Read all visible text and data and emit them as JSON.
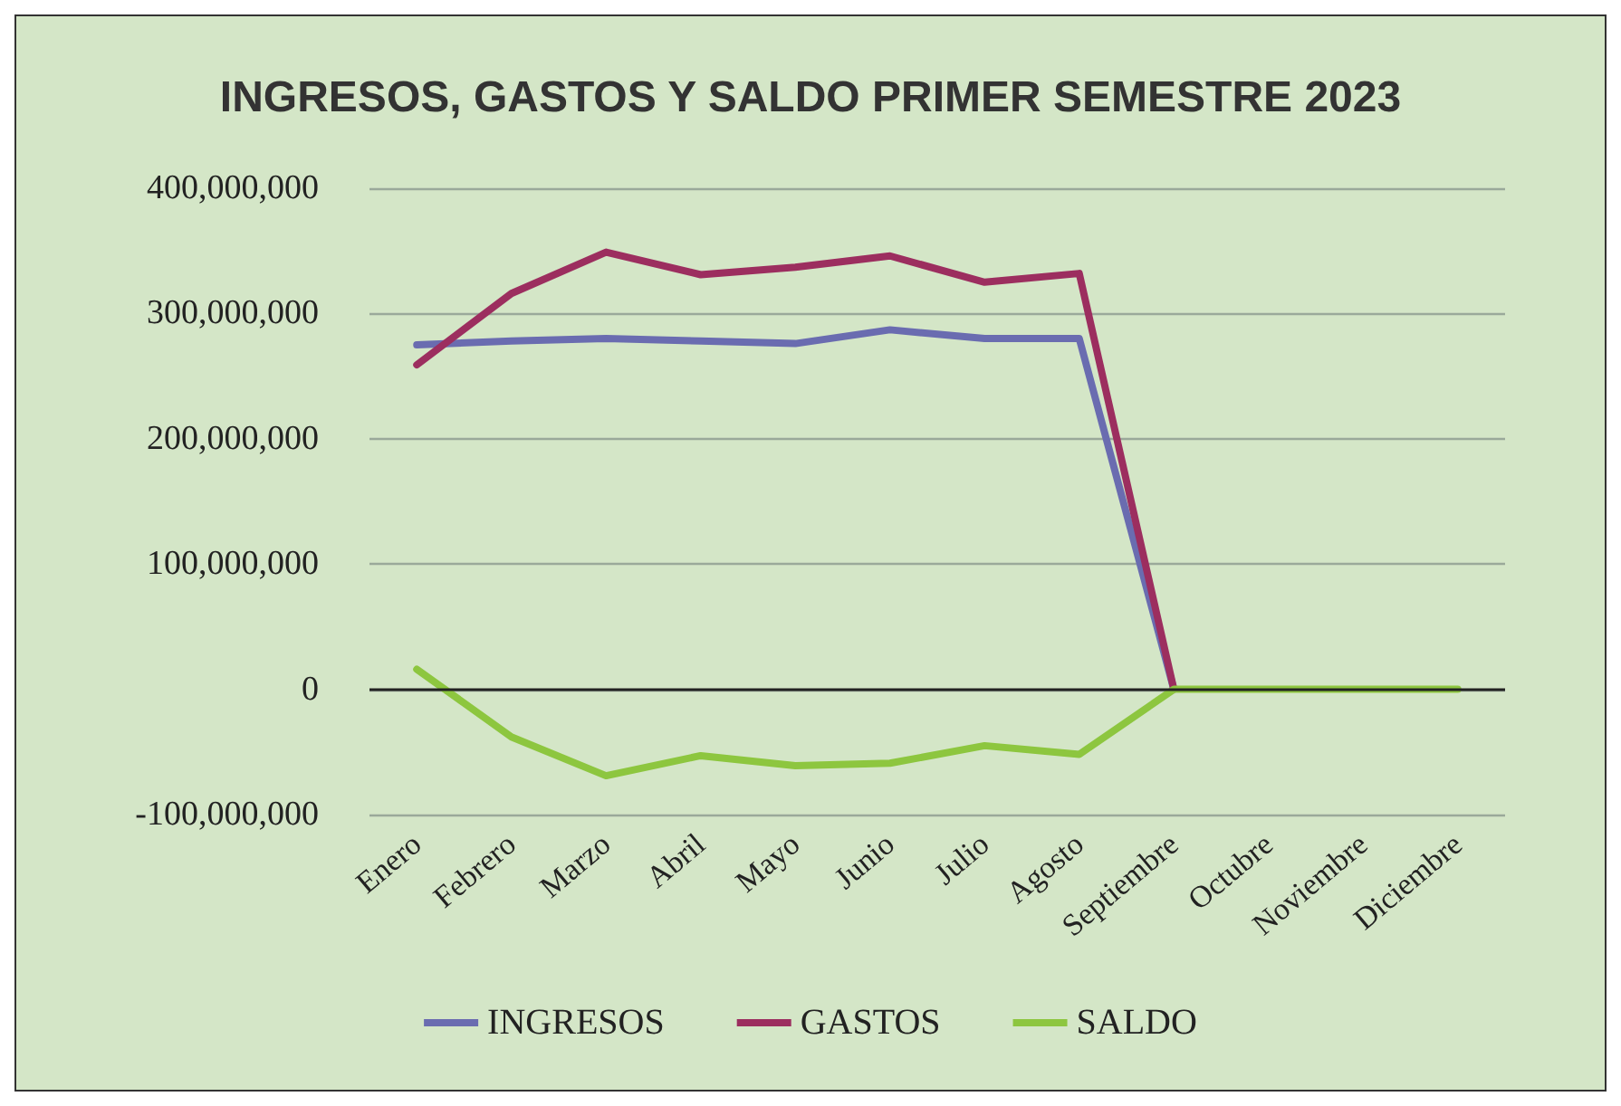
{
  "chart_data": {
    "type": "line",
    "title": "INGRESOS, GASTOS Y SALDO PRIMER SEMESTRE 2023",
    "categories": [
      "Enero",
      "Febrero",
      "Marzo",
      "Abril",
      "Mayo",
      "Junio",
      "Julio",
      "Agosto",
      "Septiembre",
      "Octubre",
      "Noviembre",
      "Diciembre"
    ],
    "series": [
      {
        "name": "INGRESOS",
        "color": "#6a6cb0",
        "values": [
          275000000,
          278000000,
          280000000,
          278000000,
          276000000,
          287000000,
          280000000,
          280000000,
          0,
          null,
          null,
          null
        ]
      },
      {
        "name": "GASTOS",
        "color": "#9c2e5f",
        "values": [
          259000000,
          316000000,
          349000000,
          331000000,
          337000000,
          346000000,
          325000000,
          332000000,
          0,
          null,
          null,
          null
        ]
      },
      {
        "name": "SALDO",
        "color": "#8dc63f",
        "values": [
          16000000,
          -38000000,
          -69000000,
          -53000000,
          -61000000,
          -59000000,
          -45000000,
          -52000000,
          0,
          0,
          0,
          0
        ]
      }
    ],
    "ylim": [
      -100000000,
      400000000
    ],
    "yticks": [
      {
        "value": -100000000,
        "label": "-100,000,000"
      },
      0,
      {
        "value": 100000000,
        "label": "100,000,000"
      },
      {
        "value": 200000000,
        "label": "200,000,000"
      },
      {
        "value": 300000000,
        "label": "300,000,000"
      },
      {
        "value": 400000000,
        "label": "400,000,000"
      }
    ],
    "grid": "y",
    "legend": "bottom",
    "marker": "none",
    "line_style": "solid"
  }
}
